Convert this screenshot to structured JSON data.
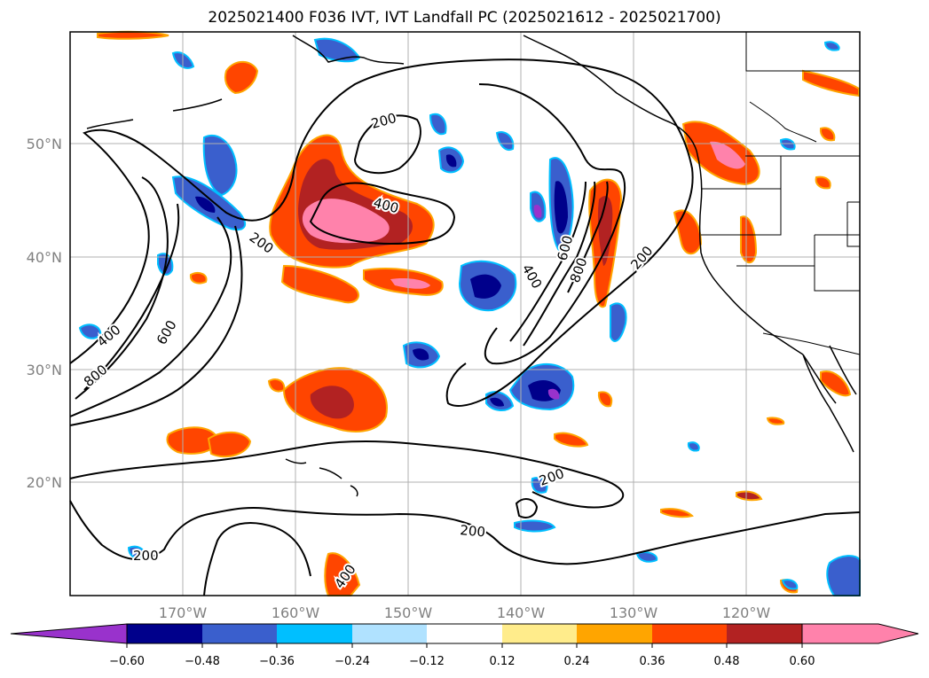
{
  "title": "2025021400 F036 IVT, IVT Landfall PC (2025021612 - 2025021700)",
  "lat_labels": [
    "50°N",
    "40°N",
    "30°N",
    "20°N"
  ],
  "lon_labels": [
    "170°W",
    "160°W",
    "150°W",
    "140°W",
    "130°W",
    "120°W"
  ],
  "contour_labels": [
    "200",
    "400",
    "200",
    "400",
    "600",
    "800",
    "400",
    "600",
    "800",
    "200",
    "200",
    "200",
    "200",
    "400"
  ],
  "colorbar": {
    "ticks": [
      "−0.60",
      "−0.48",
      "−0.36",
      "−0.24",
      "−0.12",
      "0.12",
      "0.24",
      "0.36",
      "0.48",
      "0.60"
    ],
    "colors": [
      "#9932cc",
      "#00008b",
      "#3a5fcd",
      "#00bfff",
      "#b0e2ff",
      "#ffffff",
      "#ffec8b",
      "#ffa500",
      "#ff4500",
      "#b22222",
      "#ff82ab"
    ]
  },
  "colors": {
    "neg_dark": "#00008b",
    "neg_mid": "#3a5fcd",
    "neg_light": "#00bfff",
    "pos_orange": "#ff4500",
    "pos_red": "#b22222",
    "pos_pink": "#ff82ab"
  }
}
